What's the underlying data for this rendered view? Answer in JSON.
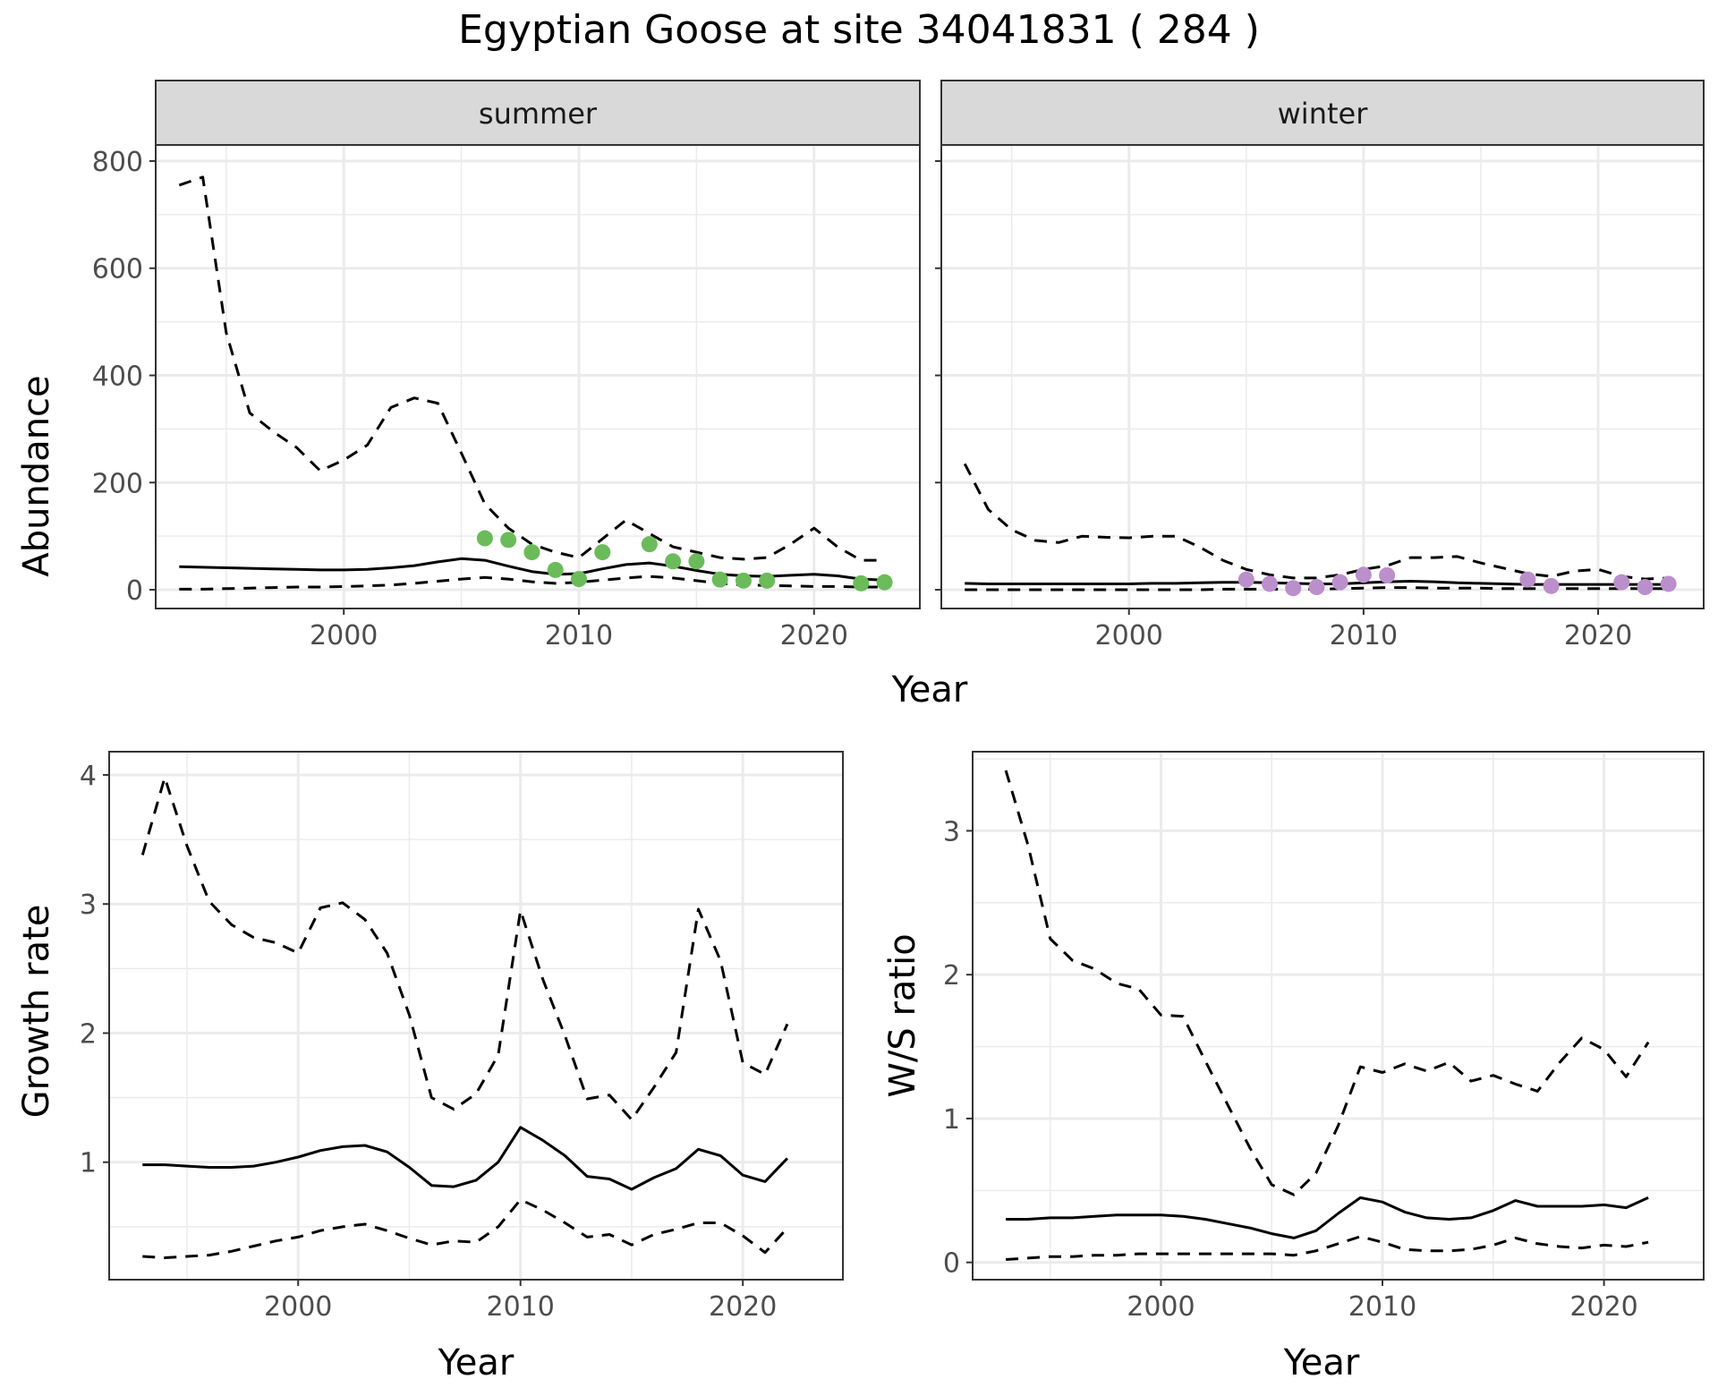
{
  "title": "Egyptian Goose at site 34041831 ( 284 )",
  "colors": {
    "summer_points": "#6BBB5A",
    "winter_points": "#BB8FCB",
    "line": "#000000",
    "grid": "#EBEBEB",
    "strip": "#D9D9D9"
  },
  "chart_data": [
    {
      "type": "line",
      "panel": "summer",
      "strip_label": "summer",
      "ylabel": "Abundance",
      "xlabel": "Year",
      "xlim": [
        1992.0,
        2024.5
      ],
      "ylim": [
        -35,
        830
      ],
      "x_ticks": [
        2000,
        2010,
        2020
      ],
      "y_ticks": [
        0,
        200,
        400,
        600,
        800
      ],
      "series": [
        {
          "style": "solid",
          "x": [
            1993,
            1994,
            1995,
            1996,
            1997,
            1998,
            1999,
            2000,
            2001,
            2002,
            2003,
            2004,
            2005,
            2006,
            2007,
            2008,
            2009,
            2010,
            2011,
            2012,
            2013,
            2014,
            2015,
            2016,
            2017,
            2018,
            2019,
            2020,
            2021,
            2022,
            2023
          ],
          "values": [
            43,
            42,
            41,
            40,
            39,
            38,
            37,
            37,
            38,
            41,
            45,
            52,
            58,
            55,
            44,
            34,
            29,
            30,
            39,
            47,
            50,
            44,
            36,
            29,
            26,
            25,
            27,
            29,
            26,
            20,
            18
          ]
        },
        {
          "style": "dashed",
          "x": [
            1993,
            1994,
            1995,
            1996,
            1997,
            1998,
            1999,
            2000,
            2001,
            2002,
            2003,
            2004,
            2005,
            2006,
            2007,
            2008,
            2009,
            2010,
            2011,
            2012,
            2013,
            2014,
            2015,
            2016,
            2017,
            2018,
            2019,
            2020,
            2021,
            2022,
            2023
          ],
          "values": [
            755,
            770,
            480,
            330,
            295,
            265,
            222,
            242,
            270,
            340,
            358,
            348,
            255,
            160,
            115,
            85,
            70,
            60,
            95,
            130,
            105,
            80,
            70,
            60,
            57,
            60,
            85,
            115,
            80,
            55,
            55
          ]
        },
        {
          "style": "dashed",
          "x": [
            1993,
            1994,
            1995,
            1996,
            1997,
            1998,
            1999,
            2000,
            2001,
            2002,
            2003,
            2004,
            2005,
            2006,
            2007,
            2008,
            2009,
            2010,
            2011,
            2012,
            2013,
            2014,
            2015,
            2016,
            2017,
            2018,
            2019,
            2020,
            2021,
            2022,
            2023
          ],
          "values": [
            1,
            1,
            2,
            3,
            4,
            5,
            5,
            6,
            7,
            9,
            12,
            16,
            20,
            23,
            20,
            15,
            12,
            14,
            18,
            22,
            25,
            22,
            17,
            12,
            9,
            8,
            7,
            6,
            6,
            5,
            5
          ]
        }
      ],
      "points": {
        "x": [
          2006,
          2007,
          2008,
          2009,
          2010,
          2011,
          2013,
          2014,
          2015,
          2016,
          2017,
          2018,
          2022,
          2023
        ],
        "values": [
          96,
          93,
          70,
          37,
          20,
          70,
          85,
          53,
          53,
          19,
          17,
          17,
          12,
          14
        ]
      }
    },
    {
      "type": "line",
      "panel": "winter",
      "strip_label": "winter",
      "xlabel": "Year",
      "xlim": [
        1992.0,
        2024.5
      ],
      "ylim": [
        -35,
        830
      ],
      "x_ticks": [
        2000,
        2010,
        2020
      ],
      "y_ticks": [
        0,
        200,
        400,
        600,
        800
      ],
      "series": [
        {
          "style": "solid",
          "x": [
            1993,
            1994,
            1995,
            1996,
            1997,
            1998,
            1999,
            2000,
            2001,
            2002,
            2003,
            2004,
            2005,
            2006,
            2007,
            2008,
            2009,
            2010,
            2011,
            2012,
            2013,
            2014,
            2015,
            2016,
            2017,
            2018,
            2019,
            2020,
            2021,
            2022,
            2023
          ],
          "values": [
            12,
            11,
            11,
            11,
            11,
            11,
            11,
            11,
            12,
            12,
            13,
            14,
            14,
            13,
            12,
            11,
            11,
            13,
            15,
            16,
            15,
            13,
            12,
            11,
            10,
            10,
            10,
            10,
            10,
            10,
            10
          ]
        },
        {
          "style": "dashed",
          "x": [
            1993,
            1994,
            1995,
            1996,
            1997,
            1998,
            1999,
            2000,
            2001,
            2002,
            2003,
            2004,
            2005,
            2006,
            2007,
            2008,
            2009,
            2010,
            2011,
            2012,
            2013,
            2014,
            2015,
            2016,
            2017,
            2018,
            2019,
            2020,
            2021,
            2022,
            2023
          ],
          "values": [
            235,
            150,
            112,
            92,
            88,
            100,
            98,
            97,
            100,
            100,
            80,
            55,
            38,
            28,
            22,
            22,
            28,
            38,
            45,
            60,
            60,
            62,
            50,
            40,
            30,
            25,
            35,
            38,
            25,
            20,
            22
          ]
        },
        {
          "style": "dashed",
          "x": [
            1993,
            1994,
            1995,
            1996,
            1997,
            1998,
            1999,
            2000,
            2001,
            2002,
            2003,
            2004,
            2005,
            2006,
            2007,
            2008,
            2009,
            2010,
            2011,
            2012,
            2013,
            2014,
            2015,
            2016,
            2017,
            2018,
            2019,
            2020,
            2021,
            2022,
            2023
          ],
          "values": [
            0,
            0,
            0,
            0,
            0,
            0,
            0,
            0,
            0,
            0,
            0,
            1,
            1,
            1,
            1,
            1,
            2,
            3,
            4,
            4,
            3,
            3,
            3,
            2,
            2,
            2,
            2,
            2,
            2,
            2,
            2
          ]
        }
      ],
      "points": {
        "x": [
          2005,
          2006,
          2007,
          2008,
          2009,
          2010,
          2011,
          2017,
          2018,
          2021,
          2022,
          2023
        ],
        "values": [
          19,
          11,
          3,
          5,
          14,
          28,
          27,
          19,
          7,
          14,
          5,
          11
        ]
      }
    },
    {
      "type": "line",
      "panel": "growth",
      "ylabel": "Growth rate",
      "xlabel": "Year",
      "xlim": [
        1991.5,
        2024.5
      ],
      "ylim": [
        0.09,
        4.18
      ],
      "x_ticks": [
        2000,
        2010,
        2020
      ],
      "y_ticks": [
        1,
        2,
        3,
        4
      ],
      "series": [
        {
          "style": "solid",
          "x": [
            1993,
            1994,
            1995,
            1996,
            1997,
            1998,
            1999,
            2000,
            2001,
            2002,
            2003,
            2004,
            2005,
            2006,
            2007,
            2008,
            2009,
            2010,
            2011,
            2012,
            2013,
            2014,
            2015,
            2016,
            2017,
            2018,
            2019,
            2020,
            2021,
            2022
          ],
          "values": [
            0.98,
            0.98,
            0.97,
            0.96,
            0.96,
            0.97,
            1.0,
            1.04,
            1.09,
            1.12,
            1.13,
            1.08,
            0.96,
            0.82,
            0.81,
            0.86,
            1.0,
            1.27,
            1.17,
            1.05,
            0.89,
            0.87,
            0.79,
            0.88,
            0.95,
            1.1,
            1.05,
            0.9,
            0.85,
            1.03
          ]
        },
        {
          "style": "dashed",
          "x": [
            1993,
            1994,
            1995,
            1996,
            1997,
            1998,
            1999,
            2000,
            2001,
            2002,
            2003,
            2004,
            2005,
            2006,
            2007,
            2008,
            2009,
            2010,
            2011,
            2012,
            2013,
            2014,
            2015,
            2016,
            2017,
            2018,
            2019,
            2020,
            2021,
            2022
          ],
          "values": [
            3.38,
            3.98,
            3.45,
            3.02,
            2.84,
            2.74,
            2.7,
            2.62,
            2.97,
            3.01,
            2.88,
            2.62,
            2.14,
            1.5,
            1.41,
            1.53,
            1.83,
            2.95,
            2.42,
            1.98,
            1.49,
            1.52,
            1.33,
            1.58,
            1.85,
            2.96,
            2.56,
            1.77,
            1.68,
            2.07
          ]
        },
        {
          "style": "dashed",
          "x": [
            1993,
            1994,
            1995,
            1996,
            1997,
            1998,
            1999,
            2000,
            2001,
            2002,
            2003,
            2004,
            2005,
            2006,
            2007,
            2008,
            2009,
            2010,
            2011,
            2012,
            2013,
            2014,
            2015,
            2016,
            2017,
            2018,
            2019,
            2020,
            2021,
            2022
          ],
          "values": [
            0.27,
            0.26,
            0.27,
            0.28,
            0.31,
            0.35,
            0.39,
            0.42,
            0.47,
            0.5,
            0.52,
            0.47,
            0.41,
            0.36,
            0.39,
            0.38,
            0.5,
            0.71,
            0.63,
            0.53,
            0.42,
            0.44,
            0.36,
            0.44,
            0.48,
            0.53,
            0.53,
            0.43,
            0.3,
            0.49
          ]
        }
      ]
    },
    {
      "type": "line",
      "panel": "ws_ratio",
      "ylabel": "W/S ratio",
      "xlabel": "Year",
      "xlim": [
        1991.5,
        2024.5
      ],
      "ylim": [
        -0.12,
        3.55
      ],
      "x_ticks": [
        2000,
        2010,
        2020
      ],
      "y_ticks": [
        0,
        1,
        2,
        3
      ],
      "series": [
        {
          "style": "solid",
          "x": [
            1993,
            1994,
            1995,
            1996,
            1997,
            1998,
            1999,
            2000,
            2001,
            2002,
            2003,
            2004,
            2005,
            2006,
            2007,
            2008,
            2009,
            2010,
            2011,
            2012,
            2013,
            2014,
            2015,
            2016,
            2017,
            2018,
            2019,
            2020,
            2021,
            2022
          ],
          "values": [
            0.3,
            0.3,
            0.31,
            0.31,
            0.32,
            0.33,
            0.33,
            0.33,
            0.32,
            0.3,
            0.27,
            0.24,
            0.2,
            0.17,
            0.22,
            0.34,
            0.45,
            0.42,
            0.35,
            0.31,
            0.3,
            0.31,
            0.36,
            0.43,
            0.39,
            0.39,
            0.39,
            0.4,
            0.38,
            0.45
          ]
        },
        {
          "style": "dashed",
          "x": [
            1993,
            1994,
            1995,
            1996,
            1997,
            1998,
            1999,
            2000,
            2001,
            2002,
            2003,
            2004,
            2005,
            2006,
            2007,
            2008,
            2009,
            2010,
            2011,
            2012,
            2013,
            2014,
            2015,
            2016,
            2017,
            2018,
            2019,
            2020,
            2021,
            2022
          ],
          "values": [
            3.42,
            2.9,
            2.25,
            2.1,
            2.04,
            1.94,
            1.9,
            1.72,
            1.71,
            1.4,
            1.1,
            0.8,
            0.54,
            0.47,
            0.62,
            0.95,
            1.36,
            1.32,
            1.38,
            1.33,
            1.39,
            1.26,
            1.3,
            1.24,
            1.19,
            1.39,
            1.56,
            1.48,
            1.29,
            1.53
          ]
        },
        {
          "style": "dashed",
          "x": [
            1993,
            1994,
            1995,
            1996,
            1997,
            1998,
            1999,
            2000,
            2001,
            2002,
            2003,
            2004,
            2005,
            2006,
            2007,
            2008,
            2009,
            2010,
            2011,
            2012,
            2013,
            2014,
            2015,
            2016,
            2017,
            2018,
            2019,
            2020,
            2021,
            2022
          ],
          "values": [
            0.02,
            0.03,
            0.04,
            0.04,
            0.05,
            0.05,
            0.06,
            0.06,
            0.06,
            0.06,
            0.06,
            0.06,
            0.06,
            0.05,
            0.08,
            0.13,
            0.18,
            0.14,
            0.09,
            0.08,
            0.08,
            0.09,
            0.12,
            0.17,
            0.13,
            0.11,
            0.1,
            0.12,
            0.11,
            0.14
          ]
        }
      ]
    }
  ]
}
